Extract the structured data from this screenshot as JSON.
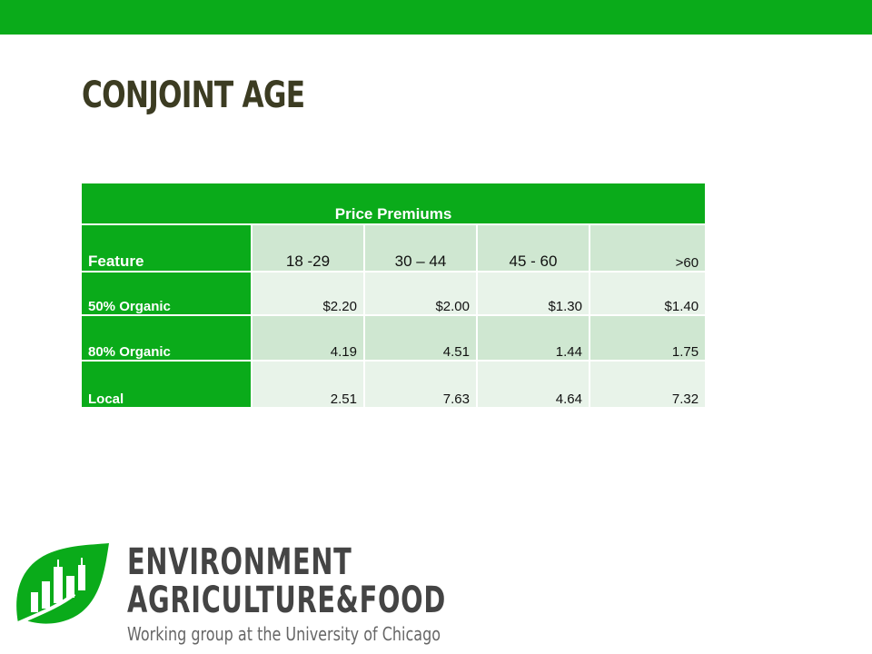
{
  "slide": {
    "title": "CONJOINT AGE"
  },
  "table": {
    "caption": "Price Premiums",
    "columns": [
      "Feature",
      "18 -29",
      "30 – 44",
      "45 - 60",
      ">60"
    ],
    "rows": [
      {
        "feature": "50% Organic",
        "values": [
          "$2.20",
          "$2.00",
          "$1.30",
          "$1.40"
        ]
      },
      {
        "feature": "80% Organic",
        "values": [
          "4.19",
          "4.51",
          "1.44",
          "1.75"
        ]
      },
      {
        "feature": "Local",
        "values": [
          "2.51",
          "7.63",
          "4.64",
          "7.32"
        ]
      }
    ]
  },
  "logo": {
    "line1": "ENVIRONMENT",
    "line2": "AGRICULTURE&FOOD",
    "tagline": "Working group at the University of Chicago",
    "brand_color": "#0aab1a"
  },
  "theme": {
    "accent": "#0aab1a",
    "cell_light": "#e8f3e9",
    "cell_dark": "#cfe7d1",
    "title_color": "#3c3c22"
  }
}
